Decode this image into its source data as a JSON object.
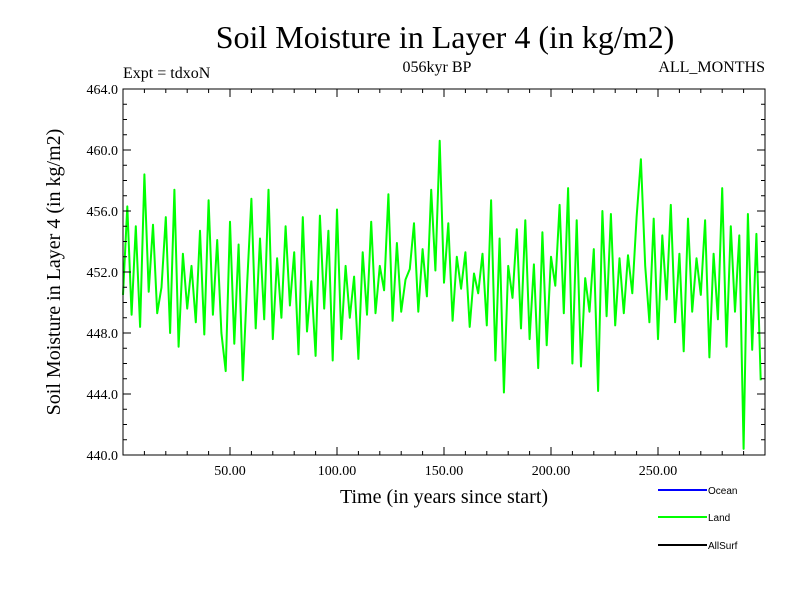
{
  "chart_data": {
    "type": "line",
    "title": "Soil Moisture in Layer 4 (in kg/m2)",
    "subtitle_left": "Expt = tdxoN",
    "subtitle_center": "056kyr BP",
    "subtitle_right": "ALL_MONTHS",
    "xlabel": "Time (in years since start)",
    "ylabel": "Soil Moisture in Layer 4 (in kg/m2)",
    "xlim": [
      0,
      300
    ],
    "ylim": [
      440,
      464
    ],
    "x_ticks": [
      50,
      100,
      150,
      200,
      250
    ],
    "x_tick_labels": [
      "50.00",
      "100.00",
      "150.00",
      "200.00",
      "250.00"
    ],
    "y_ticks": [
      440,
      444,
      448,
      452,
      456,
      460,
      464
    ],
    "y_tick_labels": [
      "440.0",
      "444.0",
      "448.0",
      "452.0",
      "456.0",
      "460.0",
      "464.0"
    ],
    "legend_position": "bottom-right",
    "legend": [
      {
        "name": "Ocean",
        "color": "#0000ff"
      },
      {
        "name": "Land",
        "color": "#00ff00"
      },
      {
        "name": "AllSurf",
        "color": "#000000"
      }
    ],
    "series": [
      {
        "name": "Land",
        "color": "#00ff00",
        "x": [
          0,
          2,
          4,
          6,
          8,
          10,
          12,
          14,
          16,
          18,
          20,
          22,
          24,
          26,
          28,
          30,
          32,
          34,
          36,
          38,
          40,
          42,
          44,
          46,
          48,
          50,
          52,
          54,
          56,
          58,
          60,
          62,
          64,
          66,
          68,
          70,
          72,
          74,
          76,
          78,
          80,
          82,
          84,
          86,
          88,
          90,
          92,
          94,
          96,
          98,
          100,
          102,
          104,
          106,
          108,
          110,
          112,
          114,
          116,
          118,
          120,
          122,
          124,
          126,
          128,
          130,
          132,
          134,
          136,
          138,
          140,
          142,
          144,
          146,
          148,
          150,
          152,
          154,
          156,
          158,
          160,
          162,
          164,
          166,
          168,
          170,
          172,
          174,
          176,
          178,
          180,
          182,
          184,
          186,
          188,
          190,
          192,
          194,
          196,
          198,
          200,
          202,
          204,
          206,
          208,
          210,
          212,
          214,
          216,
          218,
          220,
          222,
          224,
          226,
          228,
          230,
          232,
          234,
          236,
          238,
          240,
          242,
          244,
          246,
          248,
          250,
          252,
          254,
          256,
          258,
          260,
          262,
          264,
          266,
          268,
          270,
          272,
          274,
          276,
          278,
          280,
          282,
          284,
          286,
          288,
          290,
          292,
          294,
          296,
          298
        ],
        "y": [
          450.5,
          456.3,
          449.2,
          455.0,
          448.4,
          458.4,
          450.7,
          455.1,
          449.3,
          451.0,
          455.6,
          448.0,
          457.4,
          447.1,
          453.2,
          449.6,
          452.4,
          448.7,
          454.7,
          447.9,
          456.7,
          449.2,
          454.1,
          448.0,
          445.5,
          455.3,
          447.3,
          453.8,
          444.9,
          451.2,
          456.8,
          448.3,
          454.2,
          448.9,
          457.4,
          447.6,
          452.9,
          449.0,
          455.0,
          449.8,
          453.3,
          446.6,
          455.6,
          448.1,
          451.4,
          446.5,
          455.7,
          449.6,
          454.7,
          446.2,
          456.1,
          447.6,
          452.4,
          449.0,
          451.7,
          446.3,
          453.3,
          449.2,
          455.3,
          449.3,
          452.4,
          450.8,
          457.1,
          448.8,
          453.9,
          449.4,
          451.5,
          452.2,
          455.2,
          449.4,
          453.5,
          450.4,
          457.4,
          452.1,
          460.6,
          451.3,
          455.2,
          448.8,
          453.0,
          450.9,
          453.3,
          448.4,
          451.9,
          450.6,
          453.2,
          448.5,
          456.7,
          446.2,
          454.2,
          444.1,
          452.4,
          450.3,
          454.8,
          448.3,
          455.4,
          447.6,
          452.5,
          445.7,
          454.6,
          447.2,
          453.0,
          451.1,
          456.4,
          449.3,
          457.5,
          446.0,
          455.4,
          445.8,
          451.6,
          449.4,
          453.5,
          444.2,
          456.0,
          449.1,
          455.8,
          448.5,
          452.9,
          449.3,
          453.1,
          450.6,
          455.6,
          459.4,
          452.4,
          448.7,
          455.5,
          447.6,
          454.4,
          450.2,
          456.4,
          448.7,
          453.2,
          446.8,
          455.5,
          449.4,
          452.9,
          450.5,
          455.4,
          446.4,
          453.2,
          448.9,
          457.5,
          447.1,
          455.0,
          449.4,
          454.4,
          440.4,
          455.8,
          446.9,
          454.5,
          444.9
        ]
      }
    ]
  }
}
